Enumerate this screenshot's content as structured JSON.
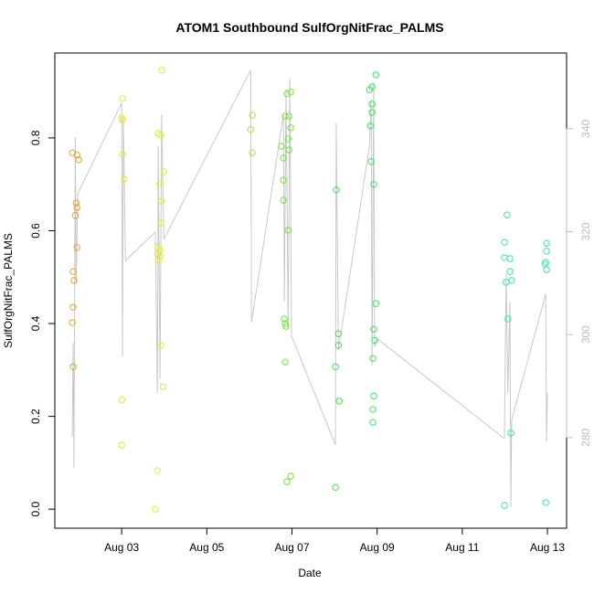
{
  "chart_data": {
    "type": "scatter",
    "title": "ATOM1 Southbound SulfOrgNitFrac_PALMS",
    "x_label": "Date",
    "y_label": "SulfOrgNitFrac_PALMS",
    "xlim": [
      1.43,
      13.45
    ],
    "xticks": [
      {
        "value": 3,
        "label": "Aug 03"
      },
      {
        "value": 5,
        "label": "Aug 05"
      },
      {
        "value": 7,
        "label": "Aug 07"
      },
      {
        "value": 9,
        "label": "Aug 09"
      },
      {
        "value": 11,
        "label": "Aug 11"
      },
      {
        "value": 13,
        "label": "Aug 13"
      }
    ],
    "ylim": [
      -0.041,
      0.983
    ],
    "yticks": [
      {
        "value": 0,
        "label": "0.0"
      },
      0.2,
      0.4,
      0.6,
      0.8
    ],
    "y2lim": [
      262.4,
      354.7
    ],
    "y2ticks": [
      280,
      300,
      320,
      340
    ],
    "y2color": "#bbbbbb",
    "series": [
      {
        "type": "scatter",
        "color": "#ee9a2e",
        "x": [
          1.84,
          1.95,
          1.99,
          1.93,
          1.95,
          1.91,
          1.95,
          1.86,
          1.88,
          1.86,
          1.84,
          1.86
        ],
        "values": [
          0.768,
          0.763,
          0.753,
          0.66,
          0.65,
          0.633,
          0.564,
          0.512,
          0.493,
          0.435,
          0.402,
          0.307
        ]
      },
      {
        "type": "scatter",
        "color": "#e6e62e",
        "x": [
          3.02,
          3.0,
          3.02,
          3.02,
          3.06,
          3.0,
          3.0
        ],
        "values": [
          0.885,
          0.843,
          0.839,
          0.765,
          0.711,
          0.236,
          0.138
        ]
      },
      {
        "type": "scatter",
        "color": "#dcf024",
        "x": [
          3.94,
          3.86,
          3.92,
          3.99,
          3.9,
          3.94,
          3.92,
          3.86,
          3.9,
          3.84,
          3.9,
          3.86,
          3.92,
          3.97,
          3.84,
          3.79
        ],
        "values": [
          0.946,
          0.81,
          0.806,
          0.727,
          0.701,
          0.664,
          0.617,
          0.566,
          0.558,
          0.55,
          0.546,
          0.536,
          0.353,
          0.264,
          0.083,
          0.0
        ]
      },
      {
        "type": "scatter",
        "color": "#a6e830",
        "x": [
          6.03,
          6.07,
          6.07
        ],
        "values": [
          0.818,
          0.849,
          0.768
        ]
      },
      {
        "type": "scatter",
        "color": "#6ee832",
        "x": [
          6.88,
          6.97,
          6.84,
          6.93,
          6.97,
          6.91,
          6.93,
          6.755,
          6.8,
          6.8,
          6.8,
          6.91,
          6.82,
          6.84,
          6.86,
          6.84,
          6.97,
          6.88
        ],
        "values": [
          0.895,
          0.899,
          0.847,
          0.847,
          0.822,
          0.798,
          0.774,
          0.782,
          0.757,
          0.709,
          0.666,
          0.601,
          0.41,
          0.4,
          0.394,
          0.317,
          0.071,
          0.059
        ]
      },
      {
        "type": "scatter",
        "color": "#46e044",
        "x": [
          8.04,
          8.09,
          8.09,
          8.02,
          8.11,
          8.02
        ],
        "values": [
          0.688,
          0.378,
          0.353,
          0.307,
          0.233,
          0.047
        ]
      },
      {
        "type": "scatter",
        "color": "#34e666",
        "x": [
          8.97,
          8.88,
          8.82,
          8.88,
          8.88,
          8.84,
          8.86,
          8.92,
          8.97,
          8.92,
          8.94,
          8.9,
          8.92,
          8.9,
          8.9
        ],
        "values": [
          0.936,
          0.91,
          0.904,
          0.873,
          0.855,
          0.826,
          0.749,
          0.7,
          0.443,
          0.388,
          0.364,
          0.325,
          0.244,
          0.215,
          0.187
        ]
      },
      {
        "type": "scatter",
        "color": "#34e6b0",
        "x": [
          12.05,
          11.99,
          11.99,
          12.12,
          12.12,
          12.16,
          12.03,
          12.07,
          12.14,
          11.99,
          12.98,
          12.98,
          12.96,
          12.94,
          12.98,
          12.96
        ],
        "values": [
          0.634,
          0.575,
          0.542,
          0.54,
          0.512,
          0.493,
          0.489,
          0.41,
          0.164,
          0.008,
          0.573,
          0.556,
          0.532,
          0.528,
          0.516,
          0.014
        ]
      },
      {
        "type": "line",
        "axis": "y2",
        "color": "#c8c8c8",
        "x": [
          1.84,
          1.86,
          1.88,
          1.91,
          1.93,
          1.97,
          3.0,
          3.02,
          3.04,
          3.09,
          3.79,
          3.84,
          3.86,
          3.9,
          3.94,
          3.99,
          6.03,
          6.05,
          6.8,
          6.82,
          6.86,
          6.91,
          6.95,
          6.99,
          8.02,
          8.04,
          8.09,
          8.82,
          8.86,
          8.88,
          8.92,
          8.94,
          8.99,
          11.99,
          12.03,
          12.07,
          12.12,
          12.14,
          12.16,
          12.96,
          12.98,
          13.0
        ],
        "values": [
          280.2,
          298.5,
          274.1,
          338.4,
          310.0,
          327.4,
          345.0,
          295.8,
          342.0,
          314.4,
          319.9,
          288.7,
          336.6,
          291.4,
          342.8,
          318.5,
          351.4,
          302.4,
          342.8,
          306.4,
          347.8,
          301.1,
          349.6,
          299.7,
          278.6,
          341.1,
          297.0,
          336.6,
          345.5,
          294.0,
          349.1,
          297.6,
          299.3,
          279.8,
          311.8,
          288.7,
          306.4,
          266.5,
          283.4,
          307.9,
          279.3,
          288.7
        ]
      }
    ]
  }
}
